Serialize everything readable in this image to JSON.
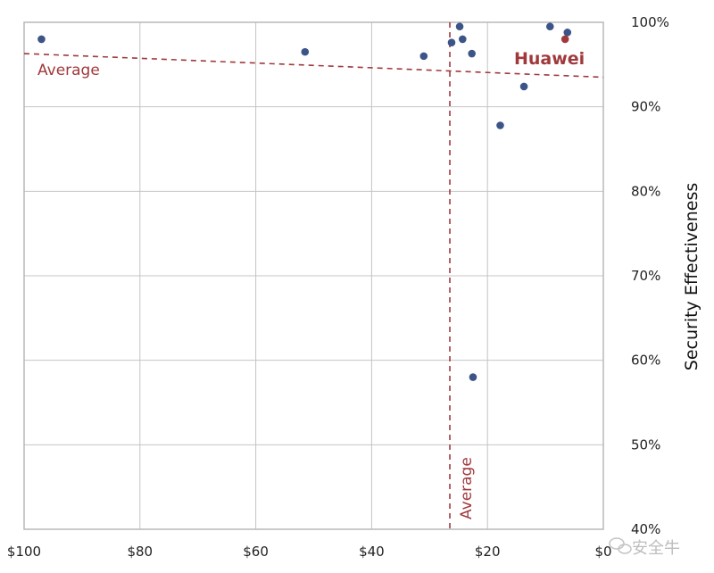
{
  "chart_data": {
    "type": "scatter",
    "title": "",
    "xlabel": "",
    "ylabel": "Security Effectiveness",
    "x_reversed": true,
    "xlim": [
      0,
      100
    ],
    "ylim": [
      40,
      100
    ],
    "grid": true,
    "x_ticks": [
      100,
      80,
      60,
      40,
      20,
      0
    ],
    "x_tick_labels": [
      "$100",
      "$80",
      "$60",
      "$40",
      "$20",
      "$0"
    ],
    "y_ticks": [
      100,
      90,
      80,
      70,
      60,
      50,
      40
    ],
    "y_tick_labels": [
      "100%",
      "90%",
      "80%",
      "70%",
      "60%",
      "50%",
      "40%"
    ],
    "y_axis_side": "right",
    "point_color": "#3c5488",
    "highlight_color": "#a0393c",
    "points": [
      {
        "x": 97,
        "y": 98.0
      },
      {
        "x": 51.5,
        "y": 96.5
      },
      {
        "x": 31,
        "y": 96.0
      },
      {
        "x": 26.2,
        "y": 97.6
      },
      {
        "x": 24.8,
        "y": 99.5
      },
      {
        "x": 24.3,
        "y": 98.0
      },
      {
        "x": 22.7,
        "y": 96.3
      },
      {
        "x": 22.5,
        "y": 58.0
      },
      {
        "x": 17.8,
        "y": 87.8
      },
      {
        "x": 13.7,
        "y": 92.4
      },
      {
        "x": 9.2,
        "y": 99.5
      },
      {
        "x": 6.2,
        "y": 98.8
      }
    ],
    "highlight": {
      "label": "Huawei",
      "x": 6.6,
      "y": 98.0
    },
    "average_lines": [
      {
        "label": "Average",
        "orientation": "sloped",
        "x1": 100,
        "y1": 96.3,
        "x2": 0,
        "y2": 93.5
      },
      {
        "label": "Average",
        "orientation": "vertical",
        "x": 26.5
      }
    ]
  },
  "watermark": {
    "text": "安全牛"
  }
}
